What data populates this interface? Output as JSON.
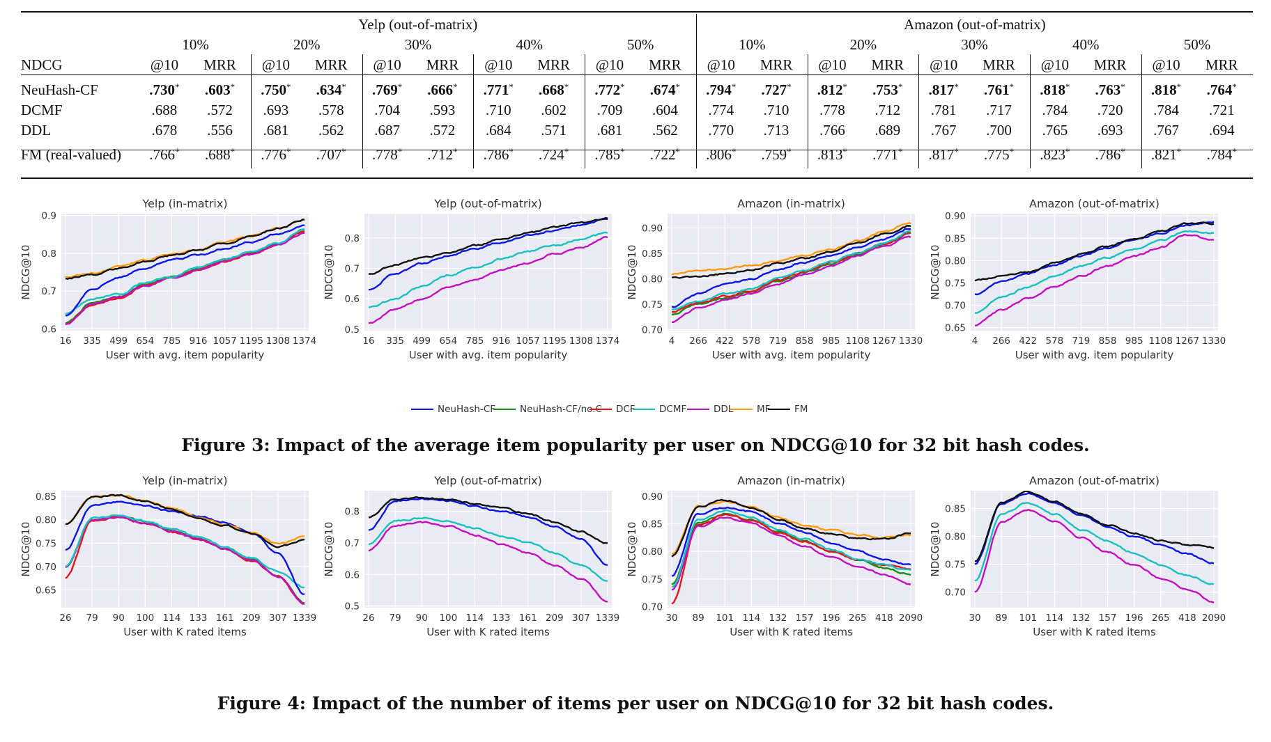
{
  "table": {
    "group_headers": [
      "Yelp (out-of-matrix)",
      "Amazon (out-of-matrix)"
    ],
    "percentages": [
      "10%",
      "20%",
      "30%",
      "40%",
      "50%",
      "10%",
      "20%",
      "30%",
      "40%",
      "50%"
    ],
    "metric_label": "NDCG",
    "subheaders": [
      "@10",
      "MRR"
    ],
    "rows": [
      {
        "method": "NeuHash-CF",
        "bold": true,
        "star": true,
        "values": [
          ".730",
          ".603",
          ".750",
          ".634",
          ".769",
          ".666",
          ".771",
          ".668",
          ".772",
          ".674",
          ".794",
          ".727",
          ".812",
          ".753",
          ".817",
          ".761",
          ".818",
          ".763",
          ".818",
          ".764"
        ]
      },
      {
        "method": "DCMF",
        "bold": false,
        "star": false,
        "values": [
          ".688",
          ".572",
          ".693",
          ".578",
          ".704",
          ".593",
          ".710",
          ".602",
          ".709",
          ".604",
          ".774",
          ".710",
          ".778",
          ".712",
          ".781",
          ".717",
          ".784",
          ".720",
          ".784",
          ".721"
        ]
      },
      {
        "method": "DDL",
        "bold": false,
        "star": false,
        "values": [
          ".678",
          ".556",
          ".681",
          ".562",
          ".687",
          ".572",
          ".684",
          ".571",
          ".681",
          ".562",
          ".770",
          ".713",
          ".766",
          ".689",
          ".767",
          ".700",
          ".765",
          ".693",
          ".767",
          ".694"
        ]
      },
      {
        "method": "FM (real-valued)",
        "bold": false,
        "star": true,
        "values": [
          ".766",
          ".688",
          ".776",
          ".707",
          ".778",
          ".712",
          ".786",
          ".724",
          ".785",
          ".722",
          ".806",
          ".759",
          ".813",
          ".771",
          ".817",
          ".775",
          ".823",
          ".786",
          ".821",
          ".784"
        ]
      }
    ]
  },
  "figure3": {
    "caption": "Figure 3: Impact of the average item popularity per user on NDCG@10 for 32 bit hash codes."
  },
  "figure4": {
    "caption": "Figure 4: Impact of the number of items per user on NDCG@10 for 32 bit hash codes."
  },
  "legend": [
    {
      "name": "NeuHash-CF",
      "color": "#0b16e6"
    },
    {
      "name": "NeuHash-CF/no.C",
      "color": "#1a8a1a"
    },
    {
      "name": "DCF",
      "color": "#e8141a"
    },
    {
      "name": "DCMF",
      "color": "#18c0c0"
    },
    {
      "name": "DDL",
      "color": "#c010c0"
    },
    {
      "name": "MF",
      "color": "#ff9a10"
    },
    {
      "name": "FM",
      "color": "#111111"
    }
  ],
  "chart_data": [
    {
      "type": "line",
      "title": "Yelp (in-matrix)",
      "xlabel": "User with avg. item popularity",
      "ylabel": "NDCG@10",
      "x_ticks": [
        "16",
        "335",
        "499",
        "654",
        "785",
        "916",
        "1057",
        "1195",
        "1308",
        "1374"
      ],
      "y_ticks": [
        "0.6",
        "0.7",
        "0.8",
        "0.9"
      ],
      "ylim": [
        0.595,
        0.905
      ],
      "grid": true,
      "series": [
        {
          "name": "NeuHash-CF",
          "values": [
            0.635,
            0.706,
            0.735,
            0.76,
            0.782,
            0.795,
            0.812,
            0.831,
            0.852,
            0.875
          ]
        },
        {
          "name": "NeuHash-CF/no.C",
          "values": [
            0.615,
            0.668,
            0.685,
            0.718,
            0.738,
            0.758,
            0.783,
            0.801,
            0.824,
            0.862
          ]
        },
        {
          "name": "DCF",
          "values": [
            0.612,
            0.663,
            0.681,
            0.713,
            0.735,
            0.756,
            0.779,
            0.798,
            0.823,
            0.858
          ]
        },
        {
          "name": "DCMF",
          "values": [
            0.64,
            0.678,
            0.69,
            0.722,
            0.74,
            0.762,
            0.786,
            0.803,
            0.828,
            0.865
          ]
        },
        {
          "name": "DDL",
          "values": [
            0.612,
            0.664,
            0.684,
            0.713,
            0.735,
            0.756,
            0.781,
            0.797,
            0.822,
            0.855
          ]
        },
        {
          "name": "MF",
          "values": [
            0.738,
            0.748,
            0.765,
            0.783,
            0.797,
            0.81,
            0.83,
            0.848,
            0.866,
            0.888
          ]
        },
        {
          "name": "FM",
          "values": [
            0.733,
            0.744,
            0.76,
            0.779,
            0.795,
            0.808,
            0.827,
            0.846,
            0.866,
            0.89
          ]
        }
      ]
    },
    {
      "type": "line",
      "title": "Yelp (out-of-matrix)",
      "xlabel": "User with avg. item popularity",
      "ylabel": "NDCG@10",
      "x_ticks": [
        "16",
        "335",
        "499",
        "654",
        "785",
        "916",
        "1057",
        "1195",
        "1308",
        "1374"
      ],
      "y_ticks": [
        "0.5",
        "0.6",
        "0.7",
        "0.8"
      ],
      "ylim": [
        0.495,
        0.88
      ],
      "grid": true,
      "series": [
        {
          "name": "NeuHash-CF",
          "values": [
            0.63,
            0.683,
            0.715,
            0.742,
            0.765,
            0.785,
            0.808,
            0.825,
            0.843,
            0.862
          ]
        },
        {
          "name": "DCMF",
          "values": [
            0.572,
            0.6,
            0.64,
            0.677,
            0.704,
            0.73,
            0.755,
            0.777,
            0.795,
            0.818
          ]
        },
        {
          "name": "DDL",
          "values": [
            0.52,
            0.563,
            0.6,
            0.637,
            0.663,
            0.693,
            0.718,
            0.747,
            0.768,
            0.804
          ]
        },
        {
          "name": "FM",
          "values": [
            0.682,
            0.712,
            0.733,
            0.752,
            0.775,
            0.795,
            0.817,
            0.835,
            0.852,
            0.866
          ]
        }
      ]
    },
    {
      "type": "line",
      "title": "Amazon (in-matrix)",
      "xlabel": "User with avg. item popularity",
      "ylabel": "NDCG@10",
      "x_ticks": [
        "4",
        "266",
        "422",
        "578",
        "719",
        "858",
        "985",
        "1108",
        "1267",
        "1330"
      ],
      "y_ticks": [
        "0.70",
        "0.75",
        "0.80",
        "0.85",
        "0.90"
      ],
      "ylim": [
        0.698,
        0.928
      ],
      "grid": true,
      "series": [
        {
          "name": "NeuHash-CF",
          "values": [
            0.745,
            0.77,
            0.79,
            0.8,
            0.818,
            0.832,
            0.846,
            0.862,
            0.878,
            0.9
          ]
        },
        {
          "name": "NeuHash-CF/no.C",
          "values": [
            0.73,
            0.75,
            0.762,
            0.775,
            0.795,
            0.812,
            0.83,
            0.848,
            0.868,
            0.888
          ]
        },
        {
          "name": "DCF",
          "values": [
            0.735,
            0.752,
            0.765,
            0.776,
            0.797,
            0.814,
            0.832,
            0.85,
            0.869,
            0.89
          ]
        },
        {
          "name": "DCMF",
          "values": [
            0.74,
            0.755,
            0.77,
            0.78,
            0.8,
            0.816,
            0.834,
            0.852,
            0.87,
            0.893
          ]
        },
        {
          "name": "DDL",
          "values": [
            0.715,
            0.742,
            0.758,
            0.77,
            0.79,
            0.808,
            0.826,
            0.845,
            0.865,
            0.882
          ]
        },
        {
          "name": "MF",
          "values": [
            0.808,
            0.815,
            0.82,
            0.826,
            0.835,
            0.846,
            0.858,
            0.875,
            0.893,
            0.912
          ]
        },
        {
          "name": "FM",
          "values": [
            0.802,
            0.804,
            0.81,
            0.818,
            0.83,
            0.84,
            0.854,
            0.87,
            0.888,
            0.905
          ]
        }
      ]
    },
    {
      "type": "line",
      "title": "Amazon (out-of-matrix)",
      "xlabel": "User with avg. item popularity",
      "ylabel": "NDCG@10",
      "x_ticks": [
        "4",
        "266",
        "422",
        "578",
        "719",
        "858",
        "985",
        "1108",
        "1267",
        "1330"
      ],
      "y_ticks": [
        "0.65",
        "0.70",
        "0.75",
        "0.80",
        "0.85",
        "0.90"
      ],
      "ylim": [
        0.643,
        0.905
      ],
      "grid": true,
      "series": [
        {
          "name": "NeuHash-CF",
          "values": [
            0.725,
            0.752,
            0.77,
            0.79,
            0.81,
            0.828,
            0.846,
            0.862,
            0.88,
            0.887
          ]
        },
        {
          "name": "DCMF",
          "values": [
            0.683,
            0.718,
            0.74,
            0.765,
            0.788,
            0.807,
            0.826,
            0.845,
            0.866,
            0.86
          ]
        },
        {
          "name": "DDL",
          "values": [
            0.655,
            0.69,
            0.715,
            0.742,
            0.766,
            0.788,
            0.81,
            0.83,
            0.858,
            0.845
          ]
        },
        {
          "name": "FM",
          "values": [
            0.755,
            0.765,
            0.775,
            0.795,
            0.815,
            0.832,
            0.85,
            0.866,
            0.884,
            0.882
          ]
        }
      ]
    },
    {
      "type": "line",
      "title": "Yelp (in-matrix)",
      "xlabel": "User with K rated items",
      "ylabel": "NDCG@10",
      "x_ticks": [
        "26",
        "79",
        "90",
        "100",
        "114",
        "133",
        "161",
        "209",
        "307",
        "1339"
      ],
      "y_ticks": [
        "0.65",
        "0.70",
        "0.75",
        "0.80",
        "0.85"
      ],
      "ylim": [
        0.612,
        0.862
      ],
      "grid": true,
      "series": [
        {
          "name": "NeuHash-CF",
          "values": [
            0.735,
            0.83,
            0.838,
            0.83,
            0.818,
            0.808,
            0.795,
            0.772,
            0.73,
            0.64
          ]
        },
        {
          "name": "NeuHash-CF/no.C",
          "values": [
            0.7,
            0.8,
            0.808,
            0.795,
            0.777,
            0.76,
            0.74,
            0.715,
            0.68,
            0.622
          ]
        },
        {
          "name": "DCF",
          "values": [
            0.675,
            0.798,
            0.806,
            0.792,
            0.774,
            0.758,
            0.738,
            0.713,
            0.678,
            0.62
          ]
        },
        {
          "name": "DCMF",
          "values": [
            0.7,
            0.803,
            0.81,
            0.797,
            0.78,
            0.762,
            0.742,
            0.718,
            0.69,
            0.655
          ]
        },
        {
          "name": "DDL",
          "values": [
            0.698,
            0.8,
            0.805,
            0.792,
            0.775,
            0.758,
            0.738,
            0.713,
            0.679,
            0.62
          ]
        },
        {
          "name": "MF",
          "values": [
            0.79,
            0.848,
            0.853,
            0.842,
            0.825,
            0.805,
            0.79,
            0.772,
            0.748,
            0.763
          ]
        },
        {
          "name": "FM",
          "values": [
            0.79,
            0.848,
            0.852,
            0.84,
            0.823,
            0.802,
            0.787,
            0.77,
            0.742,
            0.756
          ]
        }
      ]
    },
    {
      "type": "line",
      "title": "Yelp (out-of-matrix)",
      "xlabel": "User with K rated items",
      "ylabel": "NDCG@10",
      "x_ticks": [
        "26",
        "79",
        "90",
        "100",
        "114",
        "133",
        "161",
        "209",
        "307",
        "1339"
      ],
      "y_ticks": [
        "0.5",
        "0.6",
        "0.7",
        "0.8"
      ],
      "ylim": [
        0.495,
        0.865
      ],
      "grid": true,
      "series": [
        {
          "name": "NeuHash-CF",
          "values": [
            0.74,
            0.833,
            0.838,
            0.833,
            0.815,
            0.8,
            0.782,
            0.752,
            0.712,
            0.63
          ]
        },
        {
          "name": "DCMF",
          "values": [
            0.695,
            0.77,
            0.778,
            0.768,
            0.745,
            0.722,
            0.7,
            0.668,
            0.63,
            0.58
          ]
        },
        {
          "name": "DDL",
          "values": [
            0.675,
            0.755,
            0.765,
            0.753,
            0.725,
            0.695,
            0.668,
            0.63,
            0.585,
            0.515
          ]
        },
        {
          "name": "FM",
          "values": [
            0.78,
            0.84,
            0.843,
            0.838,
            0.824,
            0.81,
            0.792,
            0.765,
            0.735,
            0.7
          ]
        }
      ]
    },
    {
      "type": "line",
      "title": "Amazon (in-matrix)",
      "xlabel": "User with K rated items",
      "ylabel": "NDCG@10",
      "x_ticks": [
        "30",
        "89",
        "101",
        "114",
        "132",
        "157",
        "196",
        "265",
        "418",
        "2090"
      ],
      "y_ticks": [
        "0.70",
        "0.75",
        "0.80",
        "0.85",
        "0.90"
      ],
      "ylim": [
        0.698,
        0.91
      ],
      "grid": true,
      "series": [
        {
          "name": "NeuHash-CF",
          "values": [
            0.755,
            0.868,
            0.88,
            0.872,
            0.852,
            0.835,
            0.815,
            0.8,
            0.785,
            0.775
          ]
        },
        {
          "name": "NeuHash-CF/no.C",
          "values": [
            0.74,
            0.852,
            0.868,
            0.858,
            0.835,
            0.818,
            0.8,
            0.785,
            0.77,
            0.758
          ]
        },
        {
          "name": "DCF",
          "values": [
            0.705,
            0.848,
            0.866,
            0.856,
            0.834,
            0.818,
            0.8,
            0.785,
            0.775,
            0.768
          ]
        },
        {
          "name": "DCMF",
          "values": [
            0.735,
            0.858,
            0.874,
            0.862,
            0.84,
            0.822,
            0.803,
            0.786,
            0.775,
            0.765
          ]
        },
        {
          "name": "DDL",
          "values": [
            0.73,
            0.845,
            0.862,
            0.852,
            0.828,
            0.808,
            0.79,
            0.772,
            0.758,
            0.74
          ]
        },
        {
          "name": "MF",
          "values": [
            0.795,
            0.882,
            0.89,
            0.88,
            0.862,
            0.848,
            0.838,
            0.83,
            0.825,
            0.83
          ]
        },
        {
          "name": "FM",
          "values": [
            0.79,
            0.88,
            0.893,
            0.88,
            0.858,
            0.842,
            0.832,
            0.823,
            0.822,
            0.833
          ]
        }
      ]
    },
    {
      "type": "line",
      "title": "Amazon (out-of-matrix)",
      "xlabel": "User with K rated items",
      "ylabel": "NDCG@10",
      "x_ticks": [
        "30",
        "89",
        "101",
        "114",
        "132",
        "157",
        "196",
        "265",
        "418",
        "2090"
      ],
      "y_ticks": [
        "0.70",
        "0.75",
        "0.80",
        "0.85"
      ],
      "ylim": [
        0.672,
        0.882
      ],
      "grid": true,
      "series": [
        {
          "name": "NeuHash-CF",
          "values": [
            0.75,
            0.858,
            0.878,
            0.86,
            0.838,
            0.818,
            0.8,
            0.785,
            0.768,
            0.752
          ]
        },
        {
          "name": "DCMF",
          "values": [
            0.72,
            0.84,
            0.86,
            0.84,
            0.812,
            0.792,
            0.77,
            0.748,
            0.73,
            0.715
          ]
        },
        {
          "name": "DDL",
          "values": [
            0.7,
            0.825,
            0.848,
            0.828,
            0.798,
            0.772,
            0.748,
            0.725,
            0.705,
            0.682
          ]
        },
        {
          "name": "FM",
          "values": [
            0.755,
            0.86,
            0.88,
            0.862,
            0.84,
            0.82,
            0.806,
            0.792,
            0.785,
            0.78
          ]
        }
      ]
    }
  ]
}
